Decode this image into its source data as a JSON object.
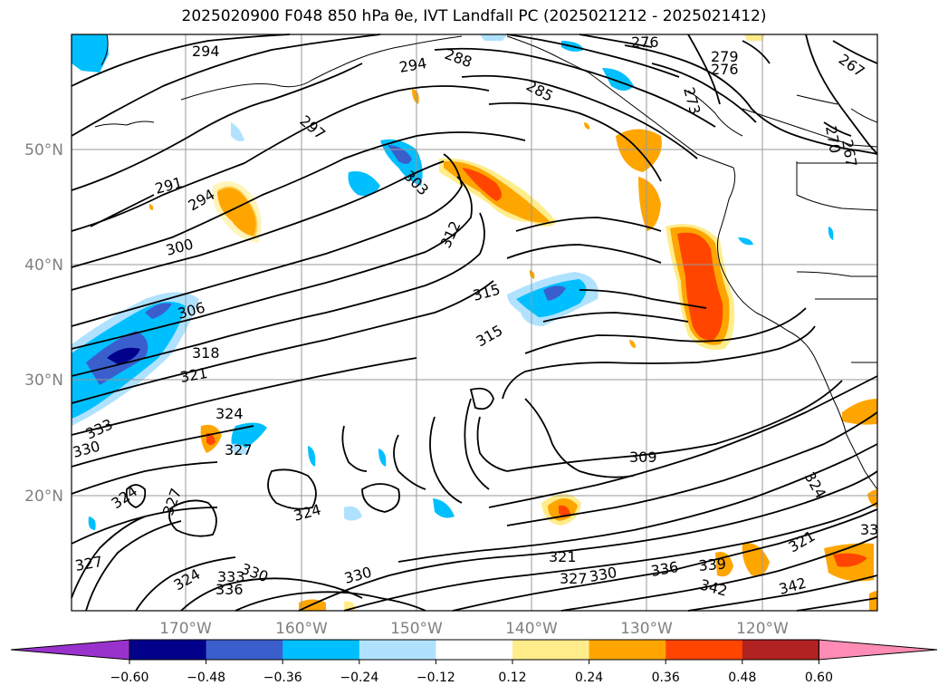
{
  "title": "2025020900 F048 850 hPa θe, IVT Landfall PC (2025021212 - 2025021412)",
  "lon_labels": [
    "170°W",
    "160°W",
    "150°W",
    "140°W",
    "130°W",
    "120°W"
  ],
  "lat_labels": [
    "50°N",
    "40°N",
    "30°N",
    "20°N"
  ],
  "contour_labels": [
    "294",
    "294",
    "288",
    "276",
    "279",
    "276",
    "267",
    "285",
    "273",
    "297",
    "270",
    "267",
    "291",
    "294",
    "303",
    "312",
    "300",
    "315",
    "315",
    "306",
    "318",
    "321",
    "324",
    "333",
    "327",
    "330",
    "324",
    "327",
    "309",
    "324",
    "324",
    "321",
    "327",
    "330",
    "336",
    "339",
    "342",
    "342",
    "327",
    "324",
    "333",
    "330",
    "336",
    "330",
    "321",
    "33"
  ],
  "colorbar": {
    "ticks": [
      "−0.60",
      "−0.48",
      "−0.36",
      "−0.24",
      "−0.12",
      "0.12",
      "0.24",
      "0.36",
      "0.48",
      "0.60"
    ],
    "colors": [
      "#9932cc",
      "#00008b",
      "#3a5fcd",
      "#00bfff",
      "#b0e2ff",
      "#ffffff",
      "#ffec8b",
      "#ffa500",
      "#ff4500",
      "#b22222",
      "#ff8cb4"
    ]
  }
}
